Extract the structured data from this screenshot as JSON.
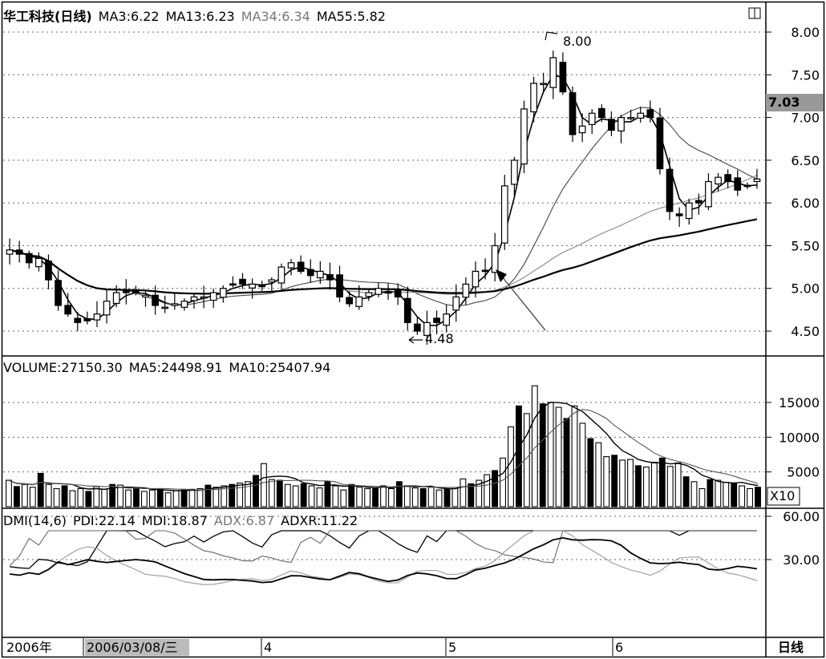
{
  "header": {
    "stock_name": "华工科技(日线)",
    "ma3": "MA3:6.22",
    "ma13": "MA13:6.23",
    "ma34": "MA34:6.34",
    "ma55": "MA55:5.82"
  },
  "price_panel": {
    "current_price": "7.03",
    "high_marker": "8.00",
    "low_marker": "4.48",
    "y_ticks": [
      "8.00",
      "7.50",
      "7.00",
      "6.50",
      "6.00",
      "5.50",
      "5.00",
      "4.50"
    ]
  },
  "volume_panel": {
    "volume": "VOLUME:27150.30",
    "ma5": "MA5:24498.91",
    "ma10": "MA10:25407.94",
    "y_ticks": [
      "15000",
      "10000",
      "5000"
    ],
    "unit": "X10"
  },
  "dmi_panel": {
    "name": "DMI(14,6)",
    "pdi": "PDI:22.14",
    "mdi": "MDI:18.87",
    "adx": "ADX:6.87",
    "adxr": "ADXR:11.22",
    "y_ticks": [
      "60.00",
      "30.00"
    ]
  },
  "time_axis": {
    "year": "2006年",
    "selected_date": "2006/03/08/三",
    "months": [
      "4",
      "5",
      "6"
    ],
    "period": "日线"
  },
  "chart_data": [
    {
      "type": "candlestick",
      "panel": "price",
      "ylim": [
        4.3,
        8.1
      ],
      "categories_months": [
        "2006-03",
        "4",
        "5",
        "6"
      ],
      "close_series_approx": [
        5.45,
        5.4,
        5.3,
        5.35,
        5.1,
        4.8,
        4.7,
        4.6,
        4.62,
        4.7,
        4.85,
        4.95,
        4.95,
        4.95,
        4.92,
        4.8,
        4.78,
        4.82,
        4.85,
        4.9,
        4.9,
        4.95,
        5.0,
        5.05,
        5.05,
        5.05,
        5.02,
        5.1,
        5.25,
        5.3,
        5.2,
        5.15,
        5.2,
        5.1,
        4.9,
        4.82,
        4.9,
        4.95,
        5.0,
        4.95,
        4.9,
        4.6,
        4.5,
        4.6,
        4.6,
        4.7,
        4.9,
        5.05,
        5.2,
        5.2,
        5.5,
        6.2,
        6.5,
        7.1,
        7.4,
        7.4,
        7.7,
        7.3,
        6.8,
        6.9,
        7.05,
        7.0,
        6.85,
        7.0,
        7.0,
        7.05,
        7.0,
        6.4,
        5.9,
        5.85,
        6.0,
        6.0,
        6.25,
        6.3,
        6.25,
        6.15,
        6.2,
        6.28
      ],
      "series": [
        {
          "name": "MA3",
          "last": 6.22
        },
        {
          "name": "MA13",
          "last": 6.23
        },
        {
          "name": "MA34",
          "last": 6.34
        },
        {
          "name": "MA55",
          "last": 5.82
        }
      ],
      "annotations": [
        {
          "label": "8.00",
          "type": "high"
        },
        {
          "label": "4.48",
          "type": "low"
        }
      ]
    },
    {
      "type": "bar",
      "panel": "volume",
      "ylim": [
        0,
        18000
      ],
      "values_approx": [
        3800,
        2900,
        3200,
        2800,
        4800,
        3200,
        2600,
        3000,
        2300,
        2600,
        2200,
        2900,
        2500,
        3200,
        3100,
        2400,
        2600,
        2200,
        2400,
        2600,
        2000,
        2300,
        2400,
        2500,
        2600,
        3100,
        2800,
        3000,
        3200,
        3400,
        3600,
        4500,
        6200,
        3900,
        3800,
        3200,
        3000,
        3300,
        3000,
        2700,
        3600,
        3000,
        2400,
        3200,
        2800,
        2600,
        2600,
        3000,
        2600,
        3600,
        3000,
        2700,
        2600,
        2800,
        2400,
        2500,
        2600,
        4000,
        3300,
        3800,
        4600,
        5200,
        7000,
        11500,
        14500,
        13400,
        17400,
        14800,
        15000,
        14300,
        12700,
        14500,
        12000,
        9800,
        9200,
        7200,
        7400,
        6700,
        6800,
        5900,
        5700,
        6400,
        7000,
        5800,
        6300,
        4300,
        3600,
        2600,
        3900,
        3800,
        3500,
        3300,
        3000,
        2600,
        2800
      ]
    },
    {
      "type": "line",
      "panel": "dmi",
      "ylim": [
        0,
        90
      ],
      "series": [
        {
          "name": "PDI",
          "last": 22.14
        },
        {
          "name": "MDI",
          "last": 18.87
        },
        {
          "name": "ADX",
          "last": 6.87
        },
        {
          "name": "ADXR",
          "last": 11.22
        }
      ]
    }
  ]
}
